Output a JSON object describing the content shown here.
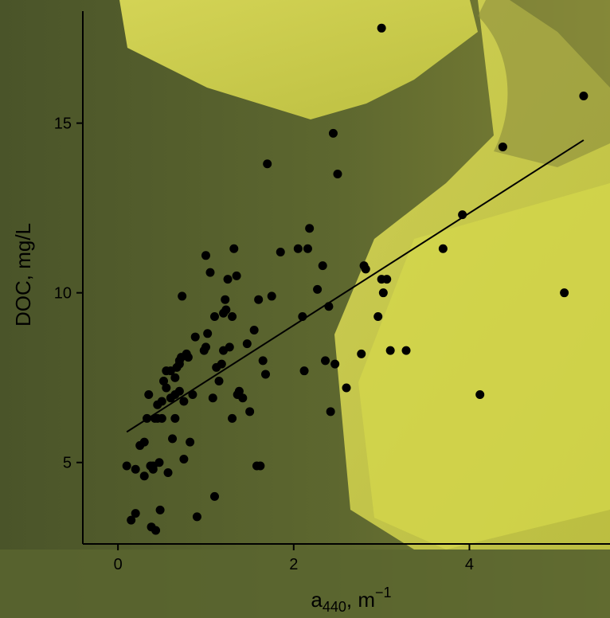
{
  "chart_data": {
    "type": "scatter",
    "title": "",
    "xlabel": {
      "base": "a",
      "sub": "440",
      "unit_base": "m",
      "unit_sup": "−1"
    },
    "ylabel": "DOC, mg/L",
    "xlim": [
      -0.4,
      5.6
    ],
    "ylim": [
      2.6,
      18.3
    ],
    "x_ticks": [
      0,
      2,
      4
    ],
    "y_ticks": [
      5,
      10,
      15
    ],
    "x_tick_labels": [
      "0",
      "2",
      "4"
    ],
    "y_tick_labels": [
      "5",
      "10",
      "15"
    ],
    "grid": false,
    "colors": {
      "points": "#000000",
      "fit_line": "#000000",
      "background_dark": "#4f5a2c",
      "background_light": "#d2d34a"
    },
    "fit_line": {
      "x": [
        0.1,
        5.3
      ],
      "y": [
        5.9,
        14.5
      ]
    },
    "points": {
      "x": [
        0.1,
        0.2,
        0.25,
        0.3,
        0.3,
        0.33,
        0.35,
        0.38,
        0.4,
        0.42,
        0.43,
        0.45,
        0.47,
        0.5,
        0.5,
        0.52,
        0.55,
        0.57,
        0.6,
        0.6,
        0.62,
        0.65,
        0.65,
        0.67,
        0.7,
        0.7,
        0.72,
        0.75,
        0.75,
        0.78,
        0.8,
        0.82,
        0.85,
        0.2,
        0.15,
        0.4,
        0.48,
        0.73,
        0.98,
        1.0,
        1.02,
        1.05,
        1.08,
        1.1,
        1.12,
        1.15,
        1.18,
        1.2,
        1.2,
        1.22,
        1.23,
        1.25,
        1.27,
        1.3,
        1.3,
        1.32,
        1.35,
        1.36,
        1.38,
        1.42,
        1.47,
        1.5,
        1.55,
        1.6,
        1.62,
        1.65,
        1.68,
        1.7,
        1.75,
        1.85,
        2.05,
        2.1,
        2.12,
        2.18,
        2.27,
        2.33,
        2.36,
        2.4,
        2.42,
        2.45,
        2.5,
        2.6,
        2.77,
        2.8,
        2.82,
        2.96,
        3.0,
        3.02,
        3.06,
        3.1,
        3.28,
        3.7,
        3.92,
        4.12,
        4.38,
        5.08,
        5.3,
        3.0,
        2.47,
        2.16,
        0.37,
        1.0,
        1.1,
        0.55,
        0.65,
        0.9,
        0.88,
        1.58,
        0.7,
        0.45
      ],
      "y": [
        4.9,
        4.8,
        5.5,
        5.6,
        4.6,
        6.3,
        7.0,
        3.1,
        4.9,
        6.3,
        3.0,
        6.3,
        5.0,
        6.8,
        6.3,
        7.4,
        7.2,
        4.7,
        7.7,
        6.9,
        5.7,
        6.3,
        7.5,
        7.8,
        8.0,
        7.1,
        8.1,
        6.8,
        5.1,
        8.2,
        8.1,
        5.6,
        7.0,
        3.5,
        3.3,
        4.8,
        3.6,
        9.9,
        8.3,
        11.1,
        8.8,
        10.6,
        6.9,
        9.3,
        7.8,
        7.4,
        7.9,
        9.4,
        8.3,
        9.8,
        9.5,
        10.4,
        8.4,
        9.3,
        6.3,
        11.3,
        10.5,
        7.0,
        7.1,
        6.9,
        8.5,
        6.5,
        8.9,
        9.8,
        4.9,
        8.0,
        7.6,
        13.8,
        9.9,
        11.2,
        11.3,
        9.3,
        7.7,
        11.9,
        10.1,
        10.8,
        8.0,
        9.6,
        6.5,
        14.7,
        13.5,
        7.2,
        8.2,
        10.8,
        10.7,
        9.3,
        10.4,
        10.0,
        10.4,
        8.3,
        8.3,
        11.3,
        12.3,
        7.0,
        14.3,
        10.0,
        15.8,
        17.8,
        7.9,
        11.3,
        4.9,
        8.4,
        4.0,
        7.7,
        7.0,
        3.4,
        8.7,
        4.9,
        7.9,
        6.7
      ]
    }
  }
}
